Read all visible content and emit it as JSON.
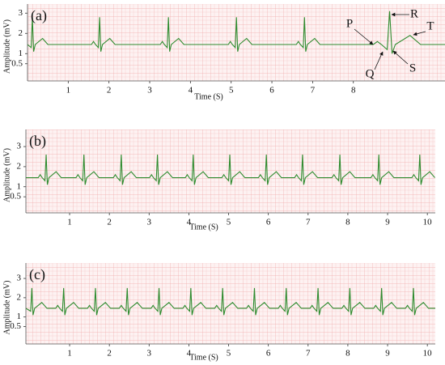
{
  "chart_data": [
    {
      "type": "line",
      "label": "(a)",
      "xlabel": "Time (S)",
      "ylabel": "Amplitude (mV)",
      "color": "#2e8b2e",
      "xlim": [
        0,
        10.25
      ],
      "ylim": [
        -0.35,
        3.45
      ],
      "xticks": [
        1,
        2,
        3,
        4,
        5,
        6,
        7,
        8
      ],
      "yticks": [
        3,
        2,
        1,
        0.5
      ],
      "annotations": [
        "P",
        "R",
        "T",
        "Q",
        "S"
      ],
      "x": [
        0,
        0.09,
        0.12,
        0.15,
        0.19,
        0.37,
        0.5,
        1.57,
        1.62,
        1.67,
        1.74,
        1.77,
        1.8,
        1.84,
        2.02,
        2.15,
        3.26,
        3.31,
        3.36,
        3.43,
        3.46,
        3.49,
        3.53,
        3.71,
        3.84,
        4.93,
        4.98,
        5.03,
        5.1,
        5.13,
        5.16,
        5.2,
        5.38,
        5.51,
        6.6,
        6.65,
        6.7,
        6.77,
        6.8,
        6.83,
        6.87,
        7.05,
        7.18,
        8.49,
        8.59,
        8.69,
        8.83,
        8.89,
        8.95,
        9.03,
        9.39,
        9.65,
        10.25
      ],
      "values": [
        1.45,
        1.3,
        2.8,
        1.1,
        1.45,
        1.75,
        1.45,
        1.45,
        1.6,
        1.45,
        1.3,
        2.8,
        1.1,
        1.45,
        1.75,
        1.45,
        1.45,
        1.6,
        1.45,
        1.3,
        2.8,
        1.1,
        1.45,
        1.75,
        1.45,
        1.45,
        1.6,
        1.45,
        1.3,
        2.8,
        1.1,
        1.45,
        1.75,
        1.45,
        1.45,
        1.6,
        1.45,
        1.3,
        2.8,
        1.1,
        1.45,
        1.75,
        1.45,
        1.45,
        1.6,
        1.45,
        1.2,
        3.1,
        1.0,
        1.45,
        1.9,
        1.45,
        1.45
      ]
    },
    {
      "type": "line",
      "label": "(b)",
      "xlabel": "Time (S)",
      "ylabel": "Amplitude (mV)",
      "color": "#2e8b2e",
      "xlim": [
        -0.1,
        10.2
      ],
      "ylim": [
        -0.3,
        3.85
      ],
      "xticks": [
        1,
        2,
        3,
        4,
        5,
        6,
        7,
        8,
        9,
        10
      ],
      "yticks": [
        3,
        2,
        1,
        0.5
      ],
      "x": [
        -0.1,
        0.21,
        0.26,
        0.31,
        0.38,
        0.41,
        0.44,
        0.48,
        0.66,
        0.79,
        1.16,
        1.21,
        1.26,
        1.33,
        1.36,
        1.39,
        1.43,
        1.61,
        1.74,
        2.1,
        2.15,
        2.2,
        2.27,
        2.3,
        2.33,
        2.37,
        2.55,
        2.68,
        3.01,
        3.06,
        3.11,
        3.18,
        3.21,
        3.24,
        3.28,
        3.46,
        3.59,
        3.91,
        3.96,
        4.01,
        4.08,
        4.11,
        4.14,
        4.18,
        4.36,
        4.49,
        4.83,
        4.88,
        4.93,
        5,
        5.03,
        5.06,
        5.1,
        5.28,
        5.41,
        5.75,
        5.8,
        5.85,
        5.92,
        5.95,
        5.98,
        6.02,
        6.2,
        6.33,
        6.66,
        6.71,
        6.76,
        6.83,
        6.86,
        6.89,
        6.93,
        7.11,
        7.24,
        7.6,
        7.65,
        7.7,
        7.77,
        7.8,
        7.83,
        7.87,
        8.05,
        8.18,
        8.58,
        8.63,
        8.68,
        8.75,
        8.78,
        8.81,
        8.85,
        9.03,
        9.16,
        9.61,
        9.66,
        9.71,
        9.78,
        9.81,
        9.84,
        9.88,
        10.06,
        10.19
      ],
      "values": [
        1.45,
        1.45,
        1.6,
        1.45,
        1.3,
        2.6,
        1.1,
        1.45,
        1.75,
        1.45,
        1.45,
        1.6,
        1.45,
        1.3,
        2.6,
        1.1,
        1.45,
        1.75,
        1.45,
        1.45,
        1.6,
        1.45,
        1.3,
        2.6,
        1.1,
        1.45,
        1.75,
        1.45,
        1.45,
        1.6,
        1.45,
        1.3,
        2.6,
        1.1,
        1.45,
        1.75,
        1.45,
        1.45,
        1.6,
        1.45,
        1.3,
        2.6,
        1.1,
        1.45,
        1.75,
        1.45,
        1.45,
        1.6,
        1.45,
        1.3,
        2.6,
        1.1,
        1.45,
        1.75,
        1.45,
        1.45,
        1.6,
        1.45,
        1.3,
        2.6,
        1.1,
        1.45,
        1.75,
        1.45,
        1.45,
        1.6,
        1.45,
        1.3,
        2.6,
        1.1,
        1.45,
        1.75,
        1.45,
        1.45,
        1.6,
        1.45,
        1.3,
        2.6,
        1.1,
        1.45,
        1.75,
        1.45,
        1.45,
        1.6,
        1.45,
        1.3,
        2.6,
        1.1,
        1.45,
        1.75,
        1.45,
        1.45,
        1.6,
        1.45,
        1.3,
        2.6,
        1.1,
        1.45,
        1.75,
        1.45
      ]
    },
    {
      "type": "line",
      "label": "(c)",
      "xlabel": "Time (S)",
      "ylabel": "Amplitude (mV)",
      "color": "#2e8b2e",
      "xlim": [
        -0.1,
        10.2
      ],
      "ylim": [
        -0.4,
        3.8
      ],
      "xticks": [
        1,
        2,
        3,
        4,
        5,
        6,
        7,
        8,
        9,
        10
      ],
      "yticks": [
        3,
        2,
        1,
        0.5
      ],
      "x": [
        -0.1,
        0.02,
        0.05,
        0.08,
        0.12,
        0.3,
        0.43,
        0.65,
        0.7,
        0.75,
        0.82,
        0.85,
        0.88,
        0.92,
        1.1,
        1.23,
        1.45,
        1.5,
        1.55,
        1.62,
        1.65,
        1.68,
        1.72,
        1.9,
        2.03,
        2.25,
        2.3,
        2.35,
        2.42,
        2.45,
        2.48,
        2.52,
        2.7,
        2.83,
        3.05,
        3.1,
        3.15,
        3.22,
        3.25,
        3.28,
        3.32,
        3.5,
        3.63,
        3.85,
        3.9,
        3.95,
        4.02,
        4.05,
        4.08,
        4.12,
        4.3,
        4.43,
        4.65,
        4.7,
        4.75,
        4.82,
        4.85,
        4.88,
        4.92,
        5.1,
        5.23,
        5.45,
        5.5,
        5.55,
        5.62,
        5.65,
        5.68,
        5.72,
        5.9,
        6.03,
        6.25,
        6.3,
        6.35,
        6.42,
        6.45,
        6.48,
        6.52,
        6.7,
        6.83,
        7.05,
        7.1,
        7.15,
        7.22,
        7.25,
        7.28,
        7.32,
        7.5,
        7.63,
        7.85,
        7.9,
        7.95,
        8.02,
        8.05,
        8.08,
        8.12,
        8.3,
        8.43,
        8.65,
        8.7,
        8.75,
        8.82,
        8.85,
        8.88,
        8.92,
        9.1,
        9.23,
        9.45,
        9.5,
        9.55,
        9.62,
        9.65,
        9.68,
        9.72,
        9.9,
        10.03,
        10.2
      ],
      "values": [
        1.45,
        1.3,
        2.5,
        1.1,
        1.45,
        1.75,
        1.45,
        1.45,
        1.6,
        1.45,
        1.3,
        2.5,
        1.1,
        1.45,
        1.75,
        1.45,
        1.45,
        1.6,
        1.45,
        1.3,
        2.5,
        1.1,
        1.45,
        1.75,
        1.45,
        1.45,
        1.6,
        1.45,
        1.3,
        2.5,
        1.1,
        1.45,
        1.75,
        1.45,
        1.45,
        1.6,
        1.45,
        1.3,
        2.5,
        1.1,
        1.45,
        1.75,
        1.45,
        1.45,
        1.6,
        1.45,
        1.3,
        2.5,
        1.1,
        1.45,
        1.75,
        1.45,
        1.45,
        1.6,
        1.45,
        1.3,
        2.5,
        1.1,
        1.45,
        1.75,
        1.45,
        1.45,
        1.6,
        1.45,
        1.3,
        2.5,
        1.1,
        1.45,
        1.75,
        1.45,
        1.45,
        1.6,
        1.45,
        1.3,
        2.5,
        1.1,
        1.45,
        1.75,
        1.45,
        1.45,
        1.6,
        1.45,
        1.3,
        2.5,
        1.1,
        1.45,
        1.75,
        1.45,
        1.45,
        1.6,
        1.45,
        1.3,
        2.5,
        1.1,
        1.45,
        1.75,
        1.45,
        1.45,
        1.6,
        1.45,
        1.3,
        2.5,
        1.1,
        1.45,
        1.75,
        1.45,
        1.45,
        1.6,
        1.45,
        1.3,
        2.5,
        1.1,
        1.45,
        1.75,
        1.45,
        1.45
      ]
    }
  ]
}
